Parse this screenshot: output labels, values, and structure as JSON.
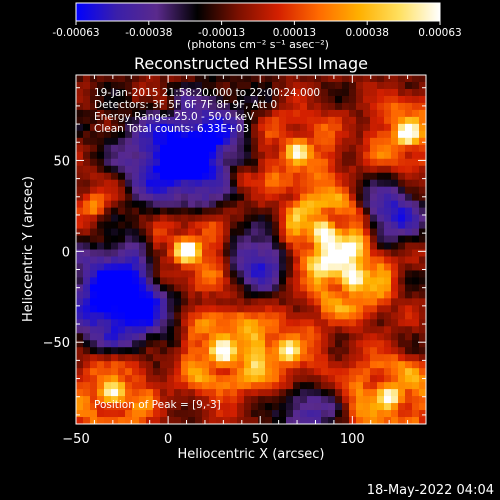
{
  "chart_data": {
    "type": "heatmap",
    "title": "Reconstructed RHESSI Image",
    "xlabel": "Heliocentric X (arcsec)",
    "ylabel": "Heliocentric Y (arcsec)",
    "xlim": [
      -50,
      140
    ],
    "ylim": [
      -95,
      97
    ],
    "xticks": [
      -50,
      0,
      50,
      100
    ],
    "yticks": [
      50,
      0,
      -50
    ],
    "colorbar": {
      "range": [
        -0.00063,
        0.00063
      ],
      "ticks": [
        "-0.00063",
        "-0.00038",
        "-0.00013",
        "0.00013",
        "0.00038",
        "0.00063"
      ],
      "unit_label": "(photons cm⁻² s⁻¹ asec⁻²)"
    },
    "colormap": [
      "#0000ff",
      "#3a1faa",
      "#5a2a8c",
      "#000000",
      "#7a1000",
      "#d42000",
      "#ff6a00",
      "#ffb000",
      "#ffe060",
      "#ffffff"
    ],
    "info_lines": [
      "19-Jan-2015 21:58:20.000 to 22:00:24.000",
      "Detectors: 3F 5F 6F 7F 8F 9F, Att 0",
      "Energy Range: 25.0 - 50.0 keV",
      "Clean     Total counts: 6.33E+03"
    ],
    "peak_label": "Position of Peak = [9,-3]",
    "sources": [
      {
        "x": 10,
        "y": 0,
        "amp": 1.0,
        "w": 14
      },
      {
        "x": 85,
        "y": 10,
        "amp": 0.95,
        "w": 16
      },
      {
        "x": 100,
        "y": -15,
        "amp": 0.9,
        "w": 14
      },
      {
        "x": 130,
        "y": 65,
        "amp": 0.95,
        "w": 12
      },
      {
        "x": 30,
        "y": -55,
        "amp": 0.9,
        "w": 16
      },
      {
        "x": -30,
        "y": -78,
        "amp": 0.85,
        "w": 14
      },
      {
        "x": 120,
        "y": -80,
        "amp": 0.85,
        "w": 15
      },
      {
        "x": 70,
        "y": 55,
        "amp": 0.7,
        "w": 14
      },
      {
        "x": -40,
        "y": 25,
        "amp": 0.5,
        "w": 10
      },
      {
        "x": 65,
        "y": -55,
        "amp": 0.7,
        "w": 12
      },
      {
        "x": 0,
        "y": 80,
        "amp": 0.45,
        "w": 12
      },
      {
        "x": 40,
        "y": 40,
        "amp": 0.45,
        "w": 10
      }
    ],
    "voids": [
      {
        "x": 10,
        "y": 55,
        "amp": 0.9,
        "w": 22
      },
      {
        "x": -25,
        "y": -25,
        "amp": 0.85,
        "w": 20
      },
      {
        "x": 50,
        "y": -5,
        "amp": 0.6,
        "w": 12
      },
      {
        "x": 120,
        "y": 20,
        "amp": 0.6,
        "w": 12
      },
      {
        "x": 75,
        "y": -88,
        "amp": 0.5,
        "w": 10
      }
    ]
  },
  "footer_timestamp": "18-May-2022 04:04"
}
